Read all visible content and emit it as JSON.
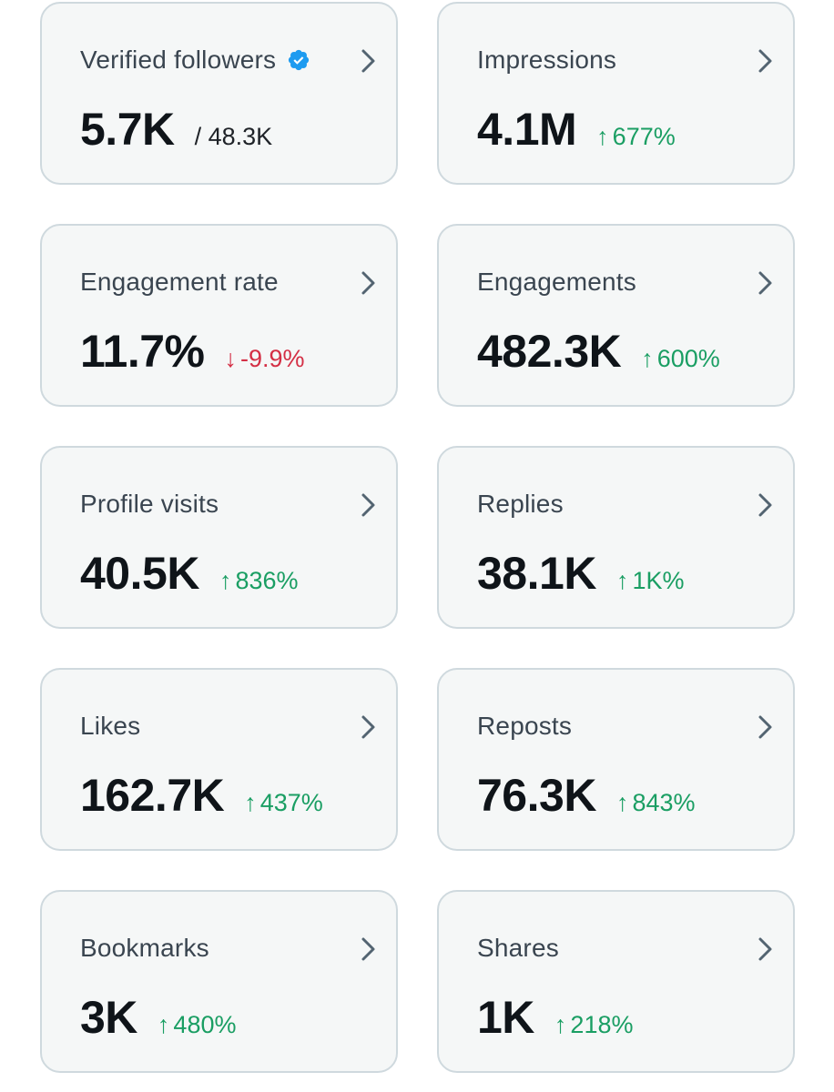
{
  "colors": {
    "card_bg": "#f5f7f7",
    "card_border": "#cfd9de",
    "label": "#3a4550",
    "value": "#0f1419",
    "up": "#1a9e63",
    "down": "#d42f45",
    "verified": "#1d9bf0",
    "chevron": "#536471"
  },
  "icons": {
    "verified": "verified-badge-icon",
    "chevron": "chevron-right-icon",
    "up": "arrow-up-icon",
    "down": "arrow-down-icon"
  },
  "cards": [
    {
      "label": "Verified followers",
      "value": "5.7K",
      "secondary": "/ 48.3K"
    },
    {
      "label": "Impressions",
      "value": "4.1M",
      "arrow": "↑",
      "change": "677%"
    },
    {
      "label": "Engagement rate",
      "value": "11.7%",
      "arrow": "↓",
      "change": "-9.9%"
    },
    {
      "label": "Engagements",
      "value": "482.3K",
      "arrow": "↑",
      "change": "600%"
    },
    {
      "label": "Profile visits",
      "value": "40.5K",
      "arrow": "↑",
      "change": "836%"
    },
    {
      "label": "Replies",
      "value": "38.1K",
      "arrow": "↑",
      "change": "1K%"
    },
    {
      "label": "Likes",
      "value": "162.7K",
      "arrow": "↑",
      "change": "437%"
    },
    {
      "label": "Reposts",
      "value": "76.3K",
      "arrow": "↑",
      "change": "843%"
    },
    {
      "label": "Bookmarks",
      "value": "3K",
      "arrow": "↑",
      "change": "480%"
    },
    {
      "label": "Shares",
      "value": "1K",
      "arrow": "↑",
      "change": "218%"
    }
  ]
}
